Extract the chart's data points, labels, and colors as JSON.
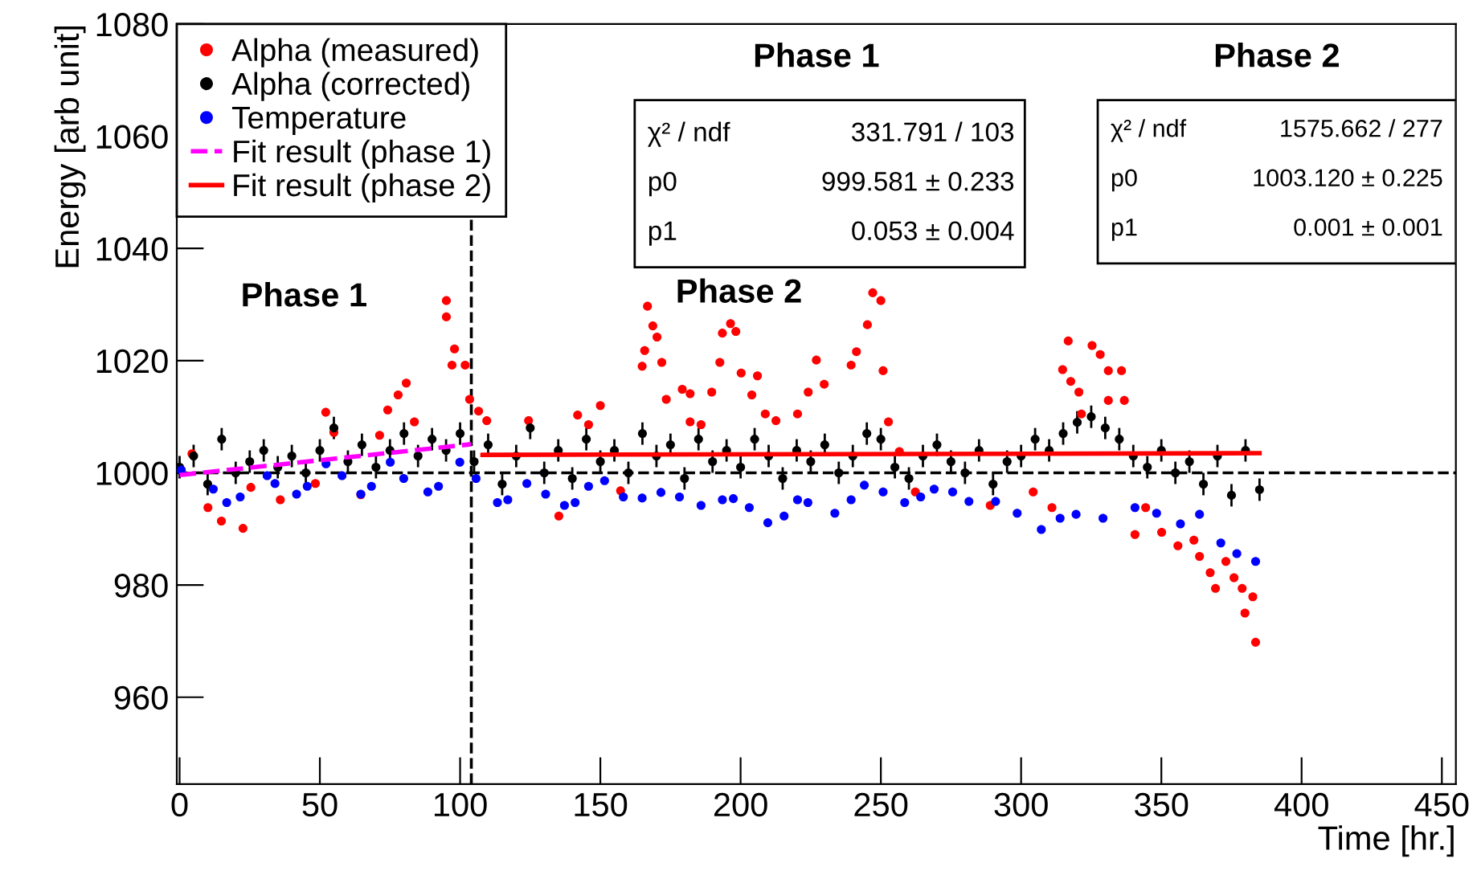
{
  "chart_data": {
    "type": "scatter",
    "xlabel": "Time [hr.]",
    "ylabel": "Energy [arb unit]",
    "xlim": [
      -1,
      455
    ],
    "ylim": [
      944.5,
      1080
    ],
    "xticks": [
      0,
      50,
      100,
      150,
      200,
      250,
      300,
      350,
      400,
      450
    ],
    "yticks": [
      960,
      980,
      1000,
      1020,
      1040,
      1060,
      1080
    ],
    "legend": "top left",
    "series": [
      {
        "name": "Alpha (measured)",
        "marker": "circle",
        "color": "#ff0000",
        "x": [
          4.4,
          10.1,
          14.9,
          22.6,
          25.4,
          35.9,
          48.4,
          52.1,
          55,
          64.6,
          71.3,
          74.2,
          77.9,
          80.8,
          83.7,
          95.1,
          95.1,
          97.1,
          98,
          101.8,
          103.4,
          106.6,
          109.5,
          124.4,
          135.2,
          141.9,
          145.8,
          150,
          157.2,
          164.9,
          165.8,
          166.8,
          168.7,
          170.2,
          171.9,
          173.5,
          179.2,
          182,
          182,
          185.9,
          189.7,
          192.6,
          193.5,
          196.4,
          198.3,
          200.2,
          204,
          206,
          208.8,
          212.6,
          220.3,
          224.1,
          227,
          229.8,
          239.4,
          241.3,
          245.2,
          247.1,
          250,
          250.8,
          252.7,
          256.6,
          262.3,
          289,
          304.3,
          311,
          314.8,
          316.8,
          317.7,
          320.6,
          321.5,
          325.3,
          328.2,
          331.1,
          331.1,
          335.8,
          336.8,
          340.6,
          344.4,
          350.1,
          355.9,
          361.6,
          363.6,
          367.4,
          369.3,
          373,
          375.9,
          378.8,
          379.8,
          382.6,
          383.6
        ],
        "values": [
          1003.4,
          993.8,
          991.4,
          990.1,
          997.4,
          995.2,
          998.1,
          1010.8,
          1007.2,
          996.1,
          1006.7,
          1011.2,
          1013.9,
          1016,
          1009.1,
          1030.7,
          1027.8,
          1019.2,
          1022.1,
          1019.2,
          1013.1,
          1011,
          1009.3,
          1009.3,
          992.3,
          1010.3,
          1008.6,
          1012,
          996.8,
          1019,
          1021.8,
          1029.7,
          1026.2,
          1024.2,
          1019.7,
          1013.1,
          1014.9,
          1014.1,
          1009.1,
          1008.6,
          1014.4,
          1019.7,
          1024.9,
          1026.6,
          1025.2,
          1017.8,
          1013.9,
          1017.3,
          1010.5,
          1009.3,
          1010.5,
          1014.4,
          1020.1,
          1015.8,
          1019.2,
          1021.6,
          1026.4,
          1032.1,
          1030.7,
          1018.2,
          1009.1,
          1003.8,
          996.6,
          994.2,
          996.6,
          993.8,
          1018.4,
          1023.5,
          1016.3,
          1014.4,
          1010.5,
          1022.7,
          1021.1,
          1018.2,
          1012.9,
          1018.2,
          1012.9,
          989,
          993.8,
          989.4,
          987,
          988,
          985.1,
          982.2,
          979.4,
          984.2,
          981.3,
          979.4,
          975,
          977.9,
          969.8
        ]
      },
      {
        "name": "Alpha (corrected)",
        "marker": "circle",
        "color": "#000000",
        "x": [
          0,
          5,
          10,
          15,
          20,
          25,
          30,
          35,
          40,
          45,
          50,
          55,
          60,
          65,
          70,
          75,
          80,
          85,
          90,
          95,
          100,
          105,
          110,
          115,
          120,
          125,
          130,
          135,
          140,
          145,
          150,
          155,
          160,
          165,
          170,
          175,
          180,
          185,
          190,
          195,
          200,
          205,
          210,
          215,
          220,
          225,
          230,
          235,
          240,
          245,
          250,
          255,
          260,
          265,
          270,
          275,
          280,
          285,
          290,
          295,
          300,
          305,
          310,
          315,
          320,
          325,
          330,
          335,
          340,
          345,
          350,
          355,
          360,
          365,
          370,
          375,
          380,
          385
        ],
        "values": [
          1001,
          1003,
          998,
          1006,
          1000,
          1002,
          1004,
          1001,
          1003,
          1000,
          1004,
          1008,
          1002,
          1005,
          1001,
          1004,
          1007,
          1003,
          1006,
          1004,
          1007,
          1002,
          1005,
          998,
          1003,
          1008,
          1000,
          1004,
          999,
          1006,
          1002,
          1004,
          1000,
          1007,
          1003,
          1005,
          999,
          1006,
          1002,
          1004,
          1001,
          1006,
          1003,
          999,
          1004,
          1002,
          1005,
          1000,
          1003,
          1007,
          1006,
          1001,
          999,
          1003,
          1005,
          1002,
          1000,
          1004,
          998,
          1002,
          1003,
          1006,
          1004,
          1007,
          1009,
          1010,
          1008,
          1006,
          1003,
          1001,
          1004,
          1000,
          1002,
          998,
          1003,
          996,
          1004,
          997
        ],
        "errors": [
          2,
          2,
          2,
          2,
          2,
          2,
          2,
          2,
          2,
          2,
          2,
          2,
          2,
          2,
          2,
          2,
          2,
          2,
          2,
          2,
          2,
          2,
          2,
          2,
          2,
          2,
          2,
          2,
          2,
          2,
          2,
          2,
          2,
          2,
          2,
          2,
          2,
          2,
          2,
          2,
          2,
          2,
          2,
          2,
          2,
          2,
          2,
          2,
          2,
          2,
          2,
          2,
          2,
          2,
          2,
          2,
          2,
          2,
          2,
          2,
          2,
          2,
          2,
          2,
          2,
          2,
          2,
          2,
          2,
          2,
          2,
          2,
          2,
          2,
          2,
          2,
          2,
          2
        ]
      },
      {
        "name": "Temperature",
        "marker": "circle",
        "color": "#0000ff",
        "x": [
          0.6,
          12,
          16.8,
          21.6,
          31.2,
          34,
          41.7,
          45.5,
          52.2,
          57.9,
          64.6,
          68.4,
          75.1,
          79.9,
          88.5,
          92.3,
          99.9,
          105.7,
          113.3,
          117,
          123.8,
          130.5,
          137.2,
          141,
          145.8,
          151.5,
          158.2,
          164.9,
          171.6,
          178.2,
          185.9,
          193.5,
          197.4,
          203.1,
          209.7,
          215.5,
          220.3,
          224,
          233.6,
          239.4,
          244.1,
          250.8,
          258.5,
          264.2,
          269,
          275.6,
          281.4,
          290.9,
          298.6,
          307.2,
          313.9,
          319.6,
          329.2,
          340.6,
          348.3,
          356.8,
          363.6,
          371.2,
          376.9,
          383.6
        ],
        "values": [
          1000.5,
          997.1,
          994.7,
          995.7,
          999.5,
          998.1,
          996.2,
          997.6,
          1001.6,
          999.5,
          996.2,
          997.6,
          1001.9,
          999,
          996.6,
          997.6,
          1001.9,
          999,
          994.7,
          995.2,
          998.1,
          996.2,
          994.2,
          994.7,
          997.6,
          998.6,
          995.7,
          995.5,
          996.5,
          995.7,
          994.2,
          995.2,
          995.4,
          993.8,
          991.1,
          992.3,
          995.2,
          994.7,
          992.8,
          995.2,
          997.8,
          996.6,
          994.7,
          995.7,
          997.1,
          996.6,
          994.9,
          994.9,
          992.8,
          989.9,
          991.9,
          992.6,
          991.9,
          993.8,
          992.8,
          990.9,
          992.6,
          987.5,
          985.6,
          984.2
        ]
      },
      {
        "name": "Fit result (phase 1)",
        "type": "line",
        "marker": "none",
        "line_style": "dashed",
        "color": "#ff00ff",
        "x": [
          0,
          104
        ],
        "values": [
          999.6,
          1005.1
        ]
      },
      {
        "name": "Fit result (phase 2)",
        "type": "line",
        "marker": "none",
        "line_style": "solid",
        "color": "#ff0000",
        "x": [
          108,
          385
        ],
        "values": [
          1003.2,
          1003.5
        ]
      }
    ],
    "ref_lines": [
      {
        "axis": "x",
        "value": 104,
        "line_style": "dashed",
        "color": "#000000"
      },
      {
        "axis": "y",
        "value": 1000,
        "line_style": "dashed",
        "color": "#000000"
      }
    ],
    "annotations": [
      "Phase 1",
      "Phase 2",
      "Phase 1",
      "χ² / ndf",
      "331.791 / 103",
      "p0",
      "999.581 ± 0.233",
      "p1",
      "0.053 ± 0.004",
      "Phase 2",
      "χ² / ndf",
      "1575.662 / 277",
      "p0",
      "1003.120 ± 0.225",
      "p1",
      "0.001 ± 0.001"
    ]
  }
}
